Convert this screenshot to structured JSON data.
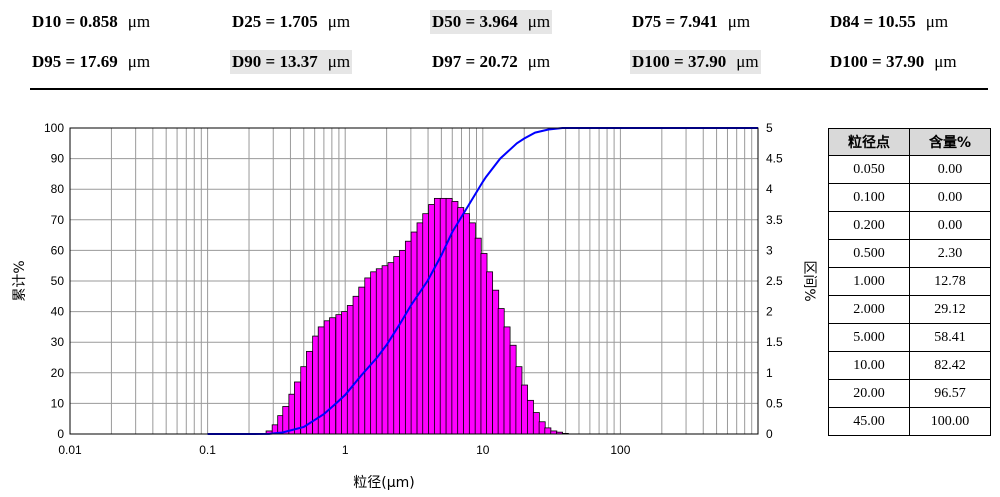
{
  "stats": {
    "unit": "μm",
    "row1": [
      {
        "label": "D10 = 0.858",
        "highlight": false
      },
      {
        "label": "D25 = 1.705",
        "highlight": false
      },
      {
        "label": "D50 = 3.964",
        "highlight": true
      },
      {
        "label": "D75 = 7.941",
        "highlight": false
      },
      {
        "label": "D84 = 10.55",
        "highlight": false
      }
    ],
    "row2": [
      {
        "label": "D95 = 17.69",
        "highlight": false
      },
      {
        "label": "D90 = 13.37",
        "highlight": true
      },
      {
        "label": "D97 = 20.72",
        "highlight": false
      },
      {
        "label": "D100 = 37.90",
        "highlight": true
      },
      {
        "label": "D100 = 37.90",
        "highlight": false
      }
    ]
  },
  "table": {
    "headers": [
      "粒径点",
      "含量%"
    ],
    "rows": [
      [
        "0.050",
        "0.00"
      ],
      [
        "0.100",
        "0.00"
      ],
      [
        "0.200",
        "0.00"
      ],
      [
        "0.500",
        "2.30"
      ],
      [
        "1.000",
        "12.78"
      ],
      [
        "2.000",
        "29.12"
      ],
      [
        "5.000",
        "58.41"
      ],
      [
        "10.00",
        "82.42"
      ],
      [
        "20.00",
        "96.57"
      ],
      [
        "45.00",
        "100.00"
      ]
    ]
  },
  "chart_data": {
    "type": "bar",
    "xlabel": "粒径(μm)",
    "ylabel_left": "累计%",
    "ylabel_right": "区间%",
    "x_scale": "log",
    "xlim": [
      0.01,
      1000
    ],
    "ylim_left": [
      0,
      100
    ],
    "ylim_right": [
      0,
      5
    ],
    "x_tick_labels": [
      "0.01",
      "0.1",
      "1",
      "10",
      "100"
    ],
    "x_ticks": [
      0.01,
      0.1,
      1,
      10,
      100
    ],
    "y_left_ticks": [
      0,
      10,
      20,
      30,
      40,
      50,
      60,
      70,
      80,
      90,
      100
    ],
    "y_right_ticks": [
      "0",
      "0.5",
      "1",
      "1.5",
      "2",
      "2.5",
      "3",
      "3.5",
      "4",
      "4.5",
      "5"
    ],
    "grid": true,
    "bar_color": "#ff00ff",
    "curve_color": "#0000ff",
    "series": [
      {
        "name": "区间%",
        "type": "bar",
        "x": [
          0.28,
          0.31,
          0.34,
          0.37,
          0.41,
          0.45,
          0.5,
          0.55,
          0.61,
          0.67,
          0.74,
          0.81,
          0.9,
          0.99,
          1.09,
          1.2,
          1.32,
          1.46,
          1.61,
          1.77,
          1.95,
          2.15,
          2.37,
          2.61,
          2.88,
          3.17,
          3.5,
          3.85,
          4.25,
          4.68,
          5.16,
          5.69,
          6.27,
          6.91,
          7.62,
          8.4,
          9.26,
          10.2,
          11.2,
          12.4,
          13.6,
          15.0,
          16.6,
          18.3,
          20.1,
          22.2,
          24.5,
          27.0,
          29.7,
          32.8,
          36.1,
          39.8
        ],
        "values": [
          0.05,
          0.15,
          0.3,
          0.45,
          0.65,
          0.85,
          1.1,
          1.35,
          1.6,
          1.75,
          1.85,
          1.9,
          1.95,
          2.0,
          2.1,
          2.25,
          2.4,
          2.55,
          2.65,
          2.7,
          2.75,
          2.8,
          2.9,
          3.0,
          3.15,
          3.3,
          3.45,
          3.6,
          3.75,
          3.85,
          3.85,
          3.85,
          3.8,
          3.7,
          3.6,
          3.45,
          3.2,
          2.95,
          2.65,
          2.35,
          2.05,
          1.75,
          1.45,
          1.1,
          0.8,
          0.55,
          0.35,
          0.2,
          0.1,
          0.05,
          0.03,
          0.01
        ]
      },
      {
        "name": "累计%",
        "type": "line",
        "x": [
          0.1,
          0.2,
          0.28,
          0.35,
          0.5,
          0.7,
          0.858,
          1.0,
          1.3,
          1.705,
          2.0,
          2.5,
          3.0,
          3.964,
          5.0,
          6.0,
          7.941,
          10.0,
          10.55,
          13.37,
          17.69,
          20.0,
          24.0,
          30.0,
          37.9,
          45.0,
          100,
          1000
        ],
        "values": [
          0,
          0,
          0.05,
          0.5,
          2.3,
          6.5,
          10,
          12.78,
          19,
          25,
          29.12,
          36,
          42,
          50,
          58.41,
          66,
          75,
          82.42,
          84,
          90,
          95,
          96.57,
          98.5,
          99.5,
          100,
          100,
          100,
          100
        ]
      }
    ]
  }
}
